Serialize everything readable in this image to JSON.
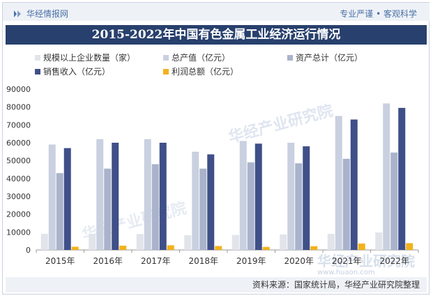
{
  "header": {
    "brand": "华经情报网",
    "slogan": "专业严谨 • 客观科学"
  },
  "title": "2015-2022年中国有色金属工业经济运行情况",
  "footer": {
    "source": "资料来源：国家统计局，华经产业研究院整理"
  },
  "watermark": {
    "text": "华经产业研究院",
    "url": "www.huaon.com"
  },
  "colors": {
    "series": [
      "#e1e4ea",
      "#c9d0e0",
      "#a9b3cb",
      "#3f4f88",
      "#f2b21c"
    ],
    "title_bg": "#28406d"
  },
  "chart_data": {
    "type": "bar",
    "title": "2015-2022年中国有色金属工业经济运行情况",
    "categories": [
      "2015年",
      "2016年",
      "2017年",
      "2018年",
      "2019年",
      "2020年",
      "2021年",
      "2022年"
    ],
    "series": [
      {
        "name": "规模以上企业数量（家）",
        "values": [
          9000,
          9000,
          8900,
          8300,
          8400,
          8700,
          9000,
          9800
        ]
      },
      {
        "name": "总产值（亿元）",
        "values": [
          59000,
          62000,
          62000,
          55000,
          61000,
          60000,
          75000,
          82000
        ]
      },
      {
        "name": "资产总计（亿元）",
        "values": [
          43000,
          45500,
          48000,
          45500,
          49000,
          48500,
          51000,
          54500
        ]
      },
      {
        "name": "销售收入（亿元）",
        "values": [
          57000,
          60000,
          60000,
          53500,
          59500,
          58000,
          73000,
          79500
        ]
      },
      {
        "name": "利润总额（亿元）",
        "values": [
          1800,
          2400,
          2600,
          2200,
          1700,
          2100,
          3600,
          3800
        ]
      }
    ],
    "xlabel": "",
    "ylabel": "",
    "ylim": [
      0,
      90000
    ],
    "yticks": [
      "0",
      "10000",
      "20000",
      "30000",
      "40000",
      "50000",
      "60000",
      "70000",
      "80000",
      "90000"
    ],
    "legend_position": "top"
  }
}
